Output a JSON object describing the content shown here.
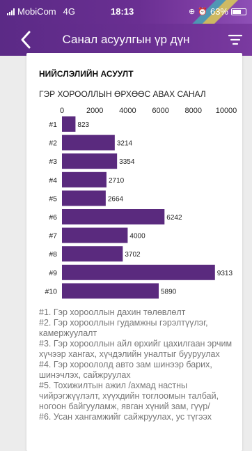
{
  "status_bar": {
    "carrier": "MobiCom",
    "network": "4G",
    "time": "18:13",
    "battery": "63%"
  },
  "header": {
    "title": "Санал асуулгын үр дүн",
    "back_icon": "chevron-left-icon",
    "filter_icon": "filter-icon"
  },
  "card": {
    "section_title": "НИЙСЛЭЛИЙН АСУУЛТ"
  },
  "chart_data": {
    "type": "bar",
    "orientation": "horizontal",
    "title": "ГЭР ХОРООЛЛЫН ӨРХӨӨС АВАХ САНАЛ",
    "categories": [
      "#1",
      "#2",
      "#3",
      "#4",
      "#5",
      "#6",
      "#7",
      "#8",
      "#9",
      "#10"
    ],
    "values": [
      823,
      3214,
      3354,
      2710,
      2664,
      6242,
      4000,
      3702,
      9313,
      5890
    ],
    "xlim": [
      0,
      10000
    ],
    "x_ticks": [
      "0",
      "2000",
      "4000",
      "6000",
      "8000",
      "10000"
    ],
    "bar_color": "#5a2a7e",
    "axis_position": "top",
    "data_labels": true,
    "grid": false
  },
  "legend_items": [
    "#1. Гэр хорооллын дахин төлөвлөлт",
    "#2. Гэр хорооллын гудамжны гэрэлтүүлэг, камержуулалт",
    "#3. Гэр хорооллын айл өрхийг цахилгаан эрчим хүчээр хангах, хүчдэлийн уналтыг бууруулах",
    "#4. Гэр хороололд авто зам шинээр барих, шинэчлэх, сайжруулах",
    "#5. Тохижилтын ажил /ахмад настны чийрэгжүүлэлт, хүүхдийн тоглоомын талбай, ногоон байгууламж, явган хүний зам, гүүр/",
    "#6. Усан хангамжийг сайжруулах, ус түгээх"
  ]
}
